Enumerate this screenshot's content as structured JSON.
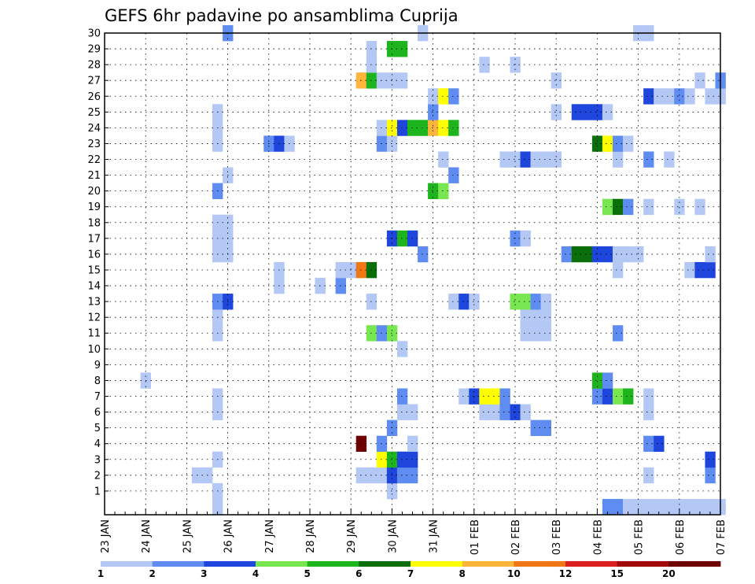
{
  "chart_data": {
    "type": "heatmap",
    "title": "GEFS 6hr padavine po ansamblima Cuprija",
    "xlabel": "",
    "ylabel": "",
    "x_tick_labels": [
      "23 JAN",
      "24 JAN",
      "25 JAN",
      "26 JAN",
      "27 JAN",
      "28 JAN",
      "29 JAN",
      "30 JAN",
      "31 JAN",
      "01 FEB",
      "02 FEB",
      "03 FEB",
      "04 FEB",
      "05 FEB",
      "06 FEB",
      "07 FEB"
    ],
    "y_tick_labels": [
      "1",
      "2",
      "3",
      "4",
      "5",
      "6",
      "7",
      "8",
      "9",
      "10",
      "11",
      "12",
      "13",
      "14",
      "15",
      "16",
      "17",
      "18",
      "19",
      "20",
      "21",
      "22",
      "23",
      "24",
      "25",
      "26",
      "27",
      "28",
      "29",
      "30"
    ],
    "x_range": [
      "23 JAN 00Z",
      "07 FEB 00Z"
    ],
    "x_step_hours": 6,
    "y_range": [
      0,
      30
    ],
    "grid": true,
    "colorbar": {
      "position": "bottom",
      "bounds": [
        1,
        2,
        3,
        4,
        5,
        6,
        7,
        8,
        10,
        12,
        15,
        20
      ],
      "labels": [
        "1",
        "2",
        "3",
        "4",
        "5",
        "6",
        "7",
        "8",
        "10",
        "12",
        "15",
        "20"
      ],
      "colors": [
        "#b4c8f5",
        "#5f8cf0",
        "#1e46dc",
        "#78e650",
        "#1eb41e",
        "#0a6e0a",
        "#ffff00",
        "#ffb43c",
        "#f07814",
        "#dc1e1e",
        "#a00a0a",
        "#6e0000"
      ]
    },
    "cell_encoding": "each cell: [member, six-hour step from 23 JAN 00Z, colour class (1 = 1-2 ... 12 = above 20)]",
    "cells": [
      [
        0,
        11,
        1
      ],
      [
        0,
        49,
        2
      ],
      [
        0,
        50,
        2
      ],
      [
        0,
        51,
        1
      ],
      [
        0,
        52,
        1
      ],
      [
        0,
        53,
        1
      ],
      [
        0,
        54,
        1
      ],
      [
        0,
        55,
        1
      ],
      [
        0,
        56,
        1
      ],
      [
        0,
        57,
        1
      ],
      [
        0,
        58,
        1
      ],
      [
        0,
        59,
        1
      ],
      [
        0,
        60,
        1
      ],
      [
        1,
        11,
        1
      ],
      [
        1,
        28,
        1
      ],
      [
        2,
        9,
        1
      ],
      [
        2,
        10,
        1
      ],
      [
        2,
        25,
        1
      ],
      [
        2,
        26,
        1
      ],
      [
        2,
        27,
        1
      ],
      [
        2,
        28,
        3
      ],
      [
        2,
        29,
        2
      ],
      [
        2,
        30,
        2
      ],
      [
        2,
        53,
        1
      ],
      [
        2,
        59,
        2
      ],
      [
        3,
        11,
        1
      ],
      [
        3,
        27,
        7
      ],
      [
        3,
        28,
        5
      ],
      [
        3,
        29,
        3
      ],
      [
        3,
        30,
        3
      ],
      [
        3,
        59,
        3
      ],
      [
        4,
        25,
        12
      ],
      [
        4,
        27,
        2
      ],
      [
        4,
        30,
        1
      ],
      [
        4,
        53,
        2
      ],
      [
        4,
        54,
        3
      ],
      [
        5,
        28,
        2
      ],
      [
        5,
        42,
        2
      ],
      [
        5,
        43,
        2
      ],
      [
        6,
        11,
        1
      ],
      [
        6,
        29,
        1
      ],
      [
        6,
        30,
        1
      ],
      [
        6,
        37,
        1
      ],
      [
        6,
        38,
        1
      ],
      [
        6,
        39,
        2
      ],
      [
        6,
        40,
        3
      ],
      [
        6,
        41,
        1
      ],
      [
        6,
        53,
        1
      ],
      [
        7,
        11,
        1
      ],
      [
        7,
        29,
        2
      ],
      [
        7,
        35,
        1
      ],
      [
        7,
        36,
        3
      ],
      [
        7,
        37,
        7
      ],
      [
        7,
        38,
        7
      ],
      [
        7,
        39,
        2
      ],
      [
        7,
        48,
        2
      ],
      [
        7,
        49,
        3
      ],
      [
        7,
        50,
        4
      ],
      [
        7,
        51,
        5
      ],
      [
        7,
        53,
        1
      ],
      [
        8,
        4,
        1
      ],
      [
        8,
        48,
        5
      ],
      [
        8,
        49,
        2
      ],
      [
        10,
        29,
        1
      ],
      [
        11,
        11,
        1
      ],
      [
        11,
        26,
        4
      ],
      [
        11,
        27,
        2
      ],
      [
        11,
        28,
        4
      ],
      [
        11,
        41,
        1
      ],
      [
        11,
        42,
        1
      ],
      [
        11,
        43,
        1
      ],
      [
        11,
        50,
        2
      ],
      [
        12,
        11,
        1
      ],
      [
        12,
        41,
        1
      ],
      [
        12,
        42,
        1
      ],
      [
        12,
        43,
        1
      ],
      [
        13,
        11,
        2
      ],
      [
        13,
        12,
        3
      ],
      [
        13,
        26,
        1
      ],
      [
        13,
        34,
        1
      ],
      [
        13,
        35,
        3
      ],
      [
        13,
        36,
        1
      ],
      [
        13,
        40,
        4
      ],
      [
        13,
        41,
        4
      ],
      [
        13,
        42,
        2
      ],
      [
        13,
        43,
        1
      ],
      [
        14,
        17,
        1
      ],
      [
        14,
        21,
        1
      ],
      [
        14,
        23,
        2
      ],
      [
        15,
        17,
        1
      ],
      [
        15,
        23,
        1
      ],
      [
        15,
        24,
        1
      ],
      [
        15,
        25,
        9
      ],
      [
        15,
        26,
        6
      ],
      [
        15,
        50,
        1
      ],
      [
        15,
        57,
        1
      ],
      [
        15,
        58,
        3
      ],
      [
        15,
        59,
        3
      ],
      [
        16,
        11,
        1
      ],
      [
        16,
        12,
        1
      ],
      [
        16,
        31,
        2
      ],
      [
        16,
        45,
        2
      ],
      [
        16,
        46,
        6
      ],
      [
        16,
        47,
        6
      ],
      [
        16,
        48,
        3
      ],
      [
        16,
        49,
        3
      ],
      [
        16,
        50,
        1
      ],
      [
        16,
        51,
        1
      ],
      [
        16,
        52,
        1
      ],
      [
        16,
        59,
        1
      ],
      [
        17,
        11,
        1
      ],
      [
        17,
        12,
        1
      ],
      [
        17,
        28,
        3
      ],
      [
        17,
        29,
        5
      ],
      [
        17,
        30,
        3
      ],
      [
        17,
        40,
        2
      ],
      [
        17,
        41,
        1
      ],
      [
        18,
        11,
        1
      ],
      [
        18,
        12,
        1
      ],
      [
        19,
        49,
        4
      ],
      [
        19,
        50,
        6
      ],
      [
        19,
        51,
        2
      ],
      [
        19,
        53,
        1
      ],
      [
        19,
        56,
        1
      ],
      [
        19,
        58,
        1
      ],
      [
        20,
        11,
        2
      ],
      [
        20,
        32,
        5
      ],
      [
        20,
        33,
        4
      ],
      [
        21,
        12,
        1
      ],
      [
        21,
        34,
        2
      ],
      [
        22,
        33,
        1
      ],
      [
        22,
        39,
        1
      ],
      [
        22,
        40,
        1
      ],
      [
        22,
        41,
        3
      ],
      [
        22,
        42,
        1
      ],
      [
        22,
        43,
        1
      ],
      [
        22,
        44,
        1
      ],
      [
        22,
        50,
        1
      ],
      [
        22,
        53,
        2
      ],
      [
        22,
        55,
        1
      ],
      [
        23,
        11,
        1
      ],
      [
        23,
        16,
        2
      ],
      [
        23,
        17,
        3
      ],
      [
        23,
        18,
        1
      ],
      [
        23,
        27,
        2
      ],
      [
        23,
        28,
        1
      ],
      [
        23,
        48,
        6
      ],
      [
        23,
        49,
        7
      ],
      [
        23,
        50,
        2
      ],
      [
        23,
        51,
        1
      ],
      [
        24,
        11,
        1
      ],
      [
        24,
        27,
        1
      ],
      [
        24,
        28,
        7
      ],
      [
        24,
        29,
        3
      ],
      [
        24,
        30,
        5
      ],
      [
        24,
        31,
        5
      ],
      [
        24,
        32,
        8
      ],
      [
        24,
        33,
        7
      ],
      [
        24,
        34,
        5
      ],
      [
        25,
        11,
        1
      ],
      [
        25,
        32,
        2
      ],
      [
        25,
        44,
        1
      ],
      [
        25,
        46,
        3
      ],
      [
        25,
        47,
        3
      ],
      [
        25,
        48,
        3
      ],
      [
        25,
        49,
        1
      ],
      [
        26,
        32,
        1
      ],
      [
        26,
        33,
        7
      ],
      [
        26,
        34,
        2
      ],
      [
        26,
        53,
        3
      ],
      [
        26,
        54,
        1
      ],
      [
        26,
        55,
        1
      ],
      [
        26,
        56,
        2
      ],
      [
        26,
        57,
        1
      ],
      [
        26,
        59,
        1
      ],
      [
        26,
        60,
        1
      ],
      [
        27,
        25,
        8
      ],
      [
        27,
        26,
        5
      ],
      [
        27,
        27,
        1
      ],
      [
        27,
        28,
        1
      ],
      [
        27,
        29,
        1
      ],
      [
        27,
        44,
        1
      ],
      [
        27,
        58,
        1
      ],
      [
        27,
        60,
        2
      ],
      [
        28,
        26,
        1
      ],
      [
        28,
        37,
        1
      ],
      [
        28,
        40,
        1
      ],
      [
        29,
        26,
        1
      ],
      [
        29,
        28,
        5
      ],
      [
        29,
        29,
        5
      ],
      [
        30,
        12,
        2
      ],
      [
        30,
        31,
        1
      ],
      [
        30,
        52,
        1
      ],
      [
        30,
        53,
        1
      ]
    ]
  }
}
